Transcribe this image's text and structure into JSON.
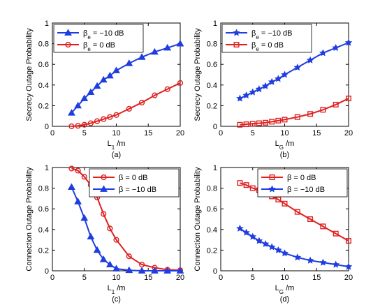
{
  "colors": {
    "blue": "#1f3de0",
    "red": "#e01f1f"
  },
  "chart_data": [
    {
      "panel": "a",
      "type": "line",
      "caption": "(a)",
      "xlabel": "L",
      "xlabel_sub": "1",
      "xlabel_unit": " /m",
      "ylabel": "Secrecy Outage Probability",
      "xlim": [
        0,
        20
      ],
      "ylim": [
        0,
        1
      ],
      "xticks": [
        "0",
        "5",
        "10",
        "15",
        "20"
      ],
      "yticks": [
        "0",
        "0.2",
        "0.4",
        "0.6",
        "0.8",
        "1"
      ],
      "legend_position": "top-left",
      "series": [
        {
          "name_parts": [
            "β",
            "e",
            " = −10 dB"
          ],
          "color": "#1f3de0",
          "marker": "triangle",
          "x": [
            3,
            4,
            5,
            6,
            7,
            8,
            9,
            10,
            12,
            14,
            16,
            18,
            20
          ],
          "y": [
            0.13,
            0.2,
            0.27,
            0.33,
            0.39,
            0.45,
            0.49,
            0.54,
            0.61,
            0.67,
            0.72,
            0.76,
            0.8
          ]
        },
        {
          "name_parts": [
            "β",
            "e",
            " = 0 dB"
          ],
          "color": "#e01f1f",
          "marker": "circle",
          "x": [
            3,
            4,
            5,
            6,
            7,
            8,
            9,
            10,
            12,
            14,
            16,
            18,
            20
          ],
          "y": [
            0.0,
            0.005,
            0.015,
            0.03,
            0.05,
            0.07,
            0.09,
            0.11,
            0.17,
            0.23,
            0.3,
            0.36,
            0.42
          ]
        }
      ]
    },
    {
      "panel": "b",
      "type": "line",
      "caption": "(b)",
      "xlabel": "L",
      "xlabel_sub": "G",
      "xlabel_unit": " /m",
      "ylabel": "Secrecy Outage Probability",
      "xlim": [
        0,
        20
      ],
      "ylim": [
        0,
        1
      ],
      "xticks": [
        "0",
        "5",
        "10",
        "15",
        "20"
      ],
      "yticks": [
        "0",
        "0.2",
        "0.4",
        "0.6",
        "0.8",
        "1"
      ],
      "legend_position": "top-left",
      "series": [
        {
          "name_parts": [
            "β",
            "e",
            " = −10 dB"
          ],
          "color": "#1f3de0",
          "marker": "star",
          "x": [
            3,
            4,
            5,
            6,
            7,
            8,
            9,
            10,
            12,
            14,
            16,
            18,
            20
          ],
          "y": [
            0.27,
            0.3,
            0.33,
            0.36,
            0.39,
            0.43,
            0.46,
            0.5,
            0.57,
            0.64,
            0.71,
            0.76,
            0.81
          ]
        },
        {
          "name_parts": [
            "β",
            "e",
            " = 0 dB"
          ],
          "color": "#e01f1f",
          "marker": "square",
          "x": [
            3,
            4,
            5,
            6,
            7,
            8,
            9,
            10,
            12,
            14,
            16,
            18,
            20
          ],
          "y": [
            0.015,
            0.02,
            0.025,
            0.03,
            0.035,
            0.045,
            0.055,
            0.065,
            0.09,
            0.12,
            0.16,
            0.21,
            0.27
          ]
        }
      ]
    },
    {
      "panel": "c",
      "type": "line",
      "caption": "(c)",
      "xlabel": "L",
      "xlabel_sub": "1",
      "xlabel_unit": " /m",
      "ylabel": "Connection Outage Probability",
      "xlim": [
        0,
        20
      ],
      "ylim": [
        0,
        1
      ],
      "xticks": [
        "0",
        "5",
        "10",
        "15",
        "20"
      ],
      "yticks": [
        "0",
        "0.2",
        "0.4",
        "0.6",
        "0.8",
        "1"
      ],
      "legend_position": "top-right",
      "series": [
        {
          "name_parts": [
            "β = 0 dB"
          ],
          "color": "#e01f1f",
          "marker": "circle",
          "x": [
            3,
            4,
            5,
            6,
            7,
            8,
            9,
            10,
            12,
            14,
            16,
            18,
            20
          ],
          "y": [
            0.99,
            0.97,
            0.91,
            0.83,
            0.71,
            0.55,
            0.41,
            0.3,
            0.14,
            0.06,
            0.03,
            0.01,
            0.005
          ]
        },
        {
          "name_parts": [
            "β = −10 dB"
          ],
          "color": "#1f3de0",
          "marker": "triangle",
          "x": [
            3,
            4,
            5,
            6,
            7,
            8,
            9,
            10,
            12,
            14,
            16,
            18,
            20
          ],
          "y": [
            0.81,
            0.67,
            0.51,
            0.33,
            0.2,
            0.11,
            0.06,
            0.02,
            0.005,
            0,
            0,
            0,
            0
          ]
        }
      ]
    },
    {
      "panel": "d",
      "type": "line",
      "caption": "(d)",
      "xlabel": "L",
      "xlabel_sub": "G",
      "xlabel_unit": " /m",
      "ylabel": "Connection Outage Probability",
      "xlim": [
        0,
        20
      ],
      "ylim": [
        0,
        1
      ],
      "xticks": [
        "0",
        "5",
        "10",
        "15",
        "20"
      ],
      "yticks": [
        "0",
        "0.2",
        "0.4",
        "0.6",
        "0.8",
        "1"
      ],
      "legend_position": "top-right",
      "series": [
        {
          "name_parts": [
            "β = 0 dB"
          ],
          "color": "#e01f1f",
          "marker": "square",
          "x": [
            3,
            4,
            5,
            6,
            7,
            8,
            9,
            10,
            12,
            14,
            16,
            18,
            20
          ],
          "y": [
            0.85,
            0.83,
            0.8,
            0.78,
            0.75,
            0.72,
            0.69,
            0.65,
            0.57,
            0.5,
            0.43,
            0.36,
            0.29
          ]
        },
        {
          "name_parts": [
            "β = −10 dB"
          ],
          "color": "#1f3de0",
          "marker": "star",
          "x": [
            3,
            4,
            5,
            6,
            7,
            8,
            9,
            10,
            12,
            14,
            16,
            18,
            20
          ],
          "y": [
            0.41,
            0.37,
            0.33,
            0.29,
            0.26,
            0.23,
            0.2,
            0.17,
            0.13,
            0.1,
            0.08,
            0.06,
            0.04
          ]
        }
      ]
    }
  ]
}
